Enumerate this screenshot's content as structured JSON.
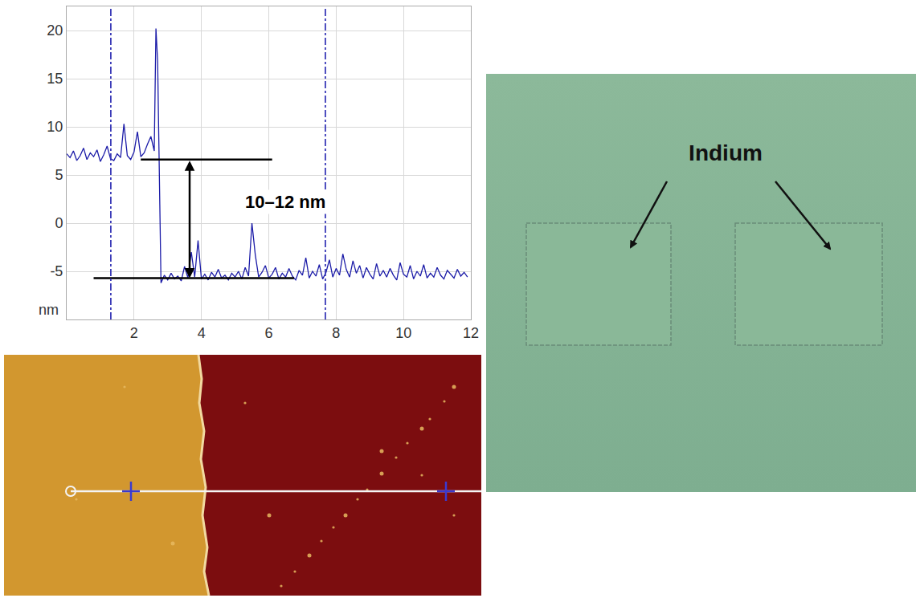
{
  "chart_data": {
    "type": "line",
    "x": [
      0.0,
      0.1,
      0.2,
      0.3,
      0.4,
      0.5,
      0.6,
      0.7,
      0.8,
      0.9,
      1.0,
      1.1,
      1.2,
      1.3,
      1.4,
      1.5,
      1.6,
      1.7,
      1.8,
      1.9,
      2.0,
      2.1,
      2.2,
      2.3,
      2.4,
      2.5,
      2.6,
      2.65,
      2.7,
      2.75,
      2.8,
      2.9,
      3.0,
      3.1,
      3.2,
      3.3,
      3.4,
      3.5,
      3.6,
      3.7,
      3.8,
      3.9,
      4.0,
      4.1,
      4.2,
      4.3,
      4.4,
      4.5,
      4.6,
      4.7,
      4.8,
      4.9,
      5.0,
      5.1,
      5.2,
      5.3,
      5.4,
      5.5,
      5.6,
      5.7,
      5.8,
      5.9,
      6.0,
      6.1,
      6.2,
      6.3,
      6.4,
      6.5,
      6.6,
      6.7,
      6.8,
      6.9,
      7.0,
      7.1,
      7.2,
      7.3,
      7.4,
      7.5,
      7.6,
      7.7,
      7.8,
      7.9,
      8.0,
      8.1,
      8.2,
      8.3,
      8.4,
      8.5,
      8.6,
      8.7,
      8.8,
      8.9,
      9.0,
      9.1,
      9.2,
      9.3,
      9.4,
      9.5,
      9.6,
      9.7,
      9.8,
      9.9,
      10.0,
      10.1,
      10.2,
      10.3,
      10.4,
      10.5,
      10.6,
      10.7,
      10.8,
      10.9,
      11.0,
      11.1,
      11.2,
      11.3,
      11.4,
      11.5,
      11.6,
      11.7,
      11.8,
      11.9
    ],
    "values": [
      7.2,
      6.8,
      7.5,
      6.5,
      7.0,
      7.8,
      6.6,
      7.3,
      6.9,
      7.6,
      6.4,
      7.1,
      8.0,
      6.7,
      6.5,
      7.2,
      6.8,
      10.3,
      7.0,
      6.6,
      7.4,
      9.5,
      6.9,
      7.3,
      8.2,
      9.0,
      7.5,
      20.2,
      16.8,
      6.0,
      -6.2,
      -5.4,
      -5.9,
      -5.2,
      -5.8,
      -5.5,
      -6.0,
      -4.5,
      -5.7,
      -3.0,
      -5.6,
      -1.8,
      -5.8,
      -5.3,
      -5.9,
      -5.1,
      -5.6,
      -4.8,
      -5.7,
      -5.4,
      -5.9,
      -5.2,
      -5.6,
      -5.0,
      -5.8,
      -4.6,
      -5.5,
      0.0,
      -3.3,
      -5.6,
      -5.1,
      -4.4,
      -5.7,
      -5.3,
      -4.6,
      -5.8,
      -5.2,
      -5.6,
      -4.7,
      -5.5,
      -5.9,
      -4.9,
      -5.4,
      -3.6,
      -5.7,
      -5.0,
      -5.5,
      -4.3,
      -5.8,
      -5.1,
      -3.8,
      -5.6,
      -4.7,
      -5.4,
      -3.2,
      -4.8,
      -5.6,
      -3.9,
      -5.2,
      -4.4,
      -5.7,
      -4.6,
      -5.3,
      -5.8,
      -4.2,
      -5.5,
      -4.9,
      -5.6,
      -4.7,
      -5.4,
      -5.9,
      -4.1,
      -5.3,
      -5.6,
      -4.4,
      -5.8,
      -5.0,
      -5.5,
      -4.3,
      -5.7,
      -5.2,
      -5.6,
      -4.6,
      -5.4,
      -5.8,
      -4.9,
      -5.3,
      -5.7,
      -4.8,
      -5.5,
      -5.1,
      -5.6
    ],
    "color": "#1c1ca8",
    "xlim": [
      0,
      12
    ],
    "xticks": [
      2,
      4,
      6,
      8,
      10,
      12
    ],
    "ylim": [
      -10,
      22.5
    ],
    "yticks": [
      -5,
      0,
      5,
      10,
      15,
      20
    ],
    "y_label": "nm",
    "grid": true,
    "hlines": [
      {
        "y": 6.6,
        "x0": 2.2,
        "x1": 6.1
      },
      {
        "y": -5.7,
        "x0": 0.8,
        "x1": 6.75
      }
    ],
    "vlines": [
      1.31,
      7.68
    ],
    "arrow": {
      "x": 3.65,
      "y0": 6.6,
      "y1": -5.7
    },
    "annotations": [
      {
        "text": "10–12 nm",
        "x": 6.5,
        "y": 2.2
      }
    ]
  },
  "micrograph": {
    "label": "Indium"
  }
}
